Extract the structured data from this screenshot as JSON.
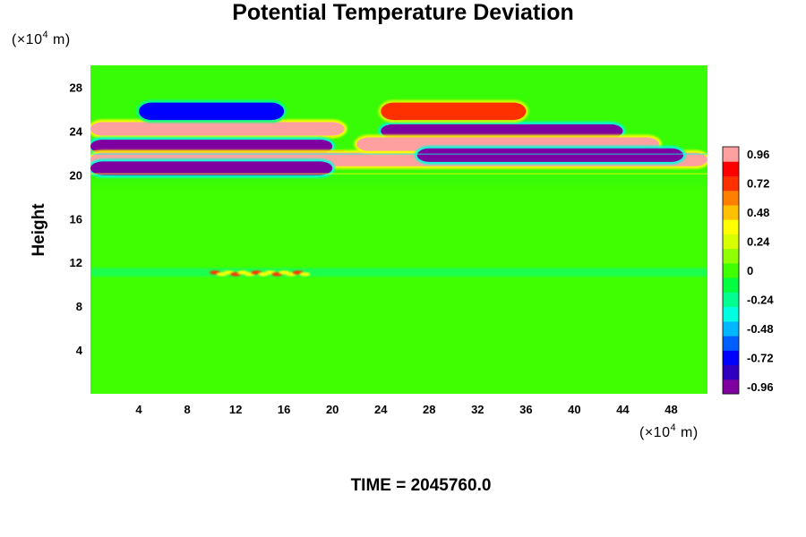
{
  "chart_data": {
    "type": "heatmap",
    "title": "Potential Temperature Deviation",
    "ylabel": "Height",
    "xlabel": "",
    "y_unit": {
      "prefix": "(×10",
      "exp": "4",
      "suffix": " m)"
    },
    "x_unit": {
      "prefix": "(×10",
      "exp": "4",
      "suffix": " m)"
    },
    "footer": "TIME = 2045760.0",
    "xlim": [
      0,
      51
    ],
    "ylim": [
      0,
      30
    ],
    "x_ticks": [
      "4",
      "8",
      "12",
      "16",
      "20",
      "24",
      "28",
      "32",
      "36",
      "40",
      "44",
      "48"
    ],
    "y_ticks": [
      "4",
      "8",
      "12",
      "16",
      "20",
      "24",
      "28"
    ],
    "colorbar": {
      "range": [
        -1.02,
        1.02
      ],
      "labels": [
        "0.96",
        "0.72",
        "0.48",
        "0.24",
        "0",
        "-0.24",
        "-0.48",
        "-0.72",
        "-0.96"
      ],
      "colors": [
        "#7f00a0",
        "#3000c0",
        "#0000ff",
        "#0060ff",
        "#00b8ff",
        "#00ffe0",
        "#00ff90",
        "#00ff40",
        "#40ff00",
        "#90ff00",
        "#d8ff00",
        "#ffff00",
        "#ffc000",
        "#ff8000",
        "#ff3000",
        "#ff0000",
        "#ffa0a0"
      ]
    },
    "field_features": [
      {
        "name": "positive layer",
        "y_center": 24.2,
        "x_range": [
          0,
          21
        ],
        "value": 1.0
      },
      {
        "name": "negative layer",
        "y_center": 22.6,
        "x_range": [
          0,
          20
        ],
        "value": -1.0
      },
      {
        "name": "positive layer",
        "y_center": 21.4,
        "x_range": [
          0,
          51
        ],
        "value": 1.0
      },
      {
        "name": "negative layer",
        "y_center": 20.6,
        "x_range": [
          0,
          20
        ],
        "value": -1.0
      },
      {
        "name": "negative layer",
        "y_center": 24.0,
        "x_range": [
          24,
          44
        ],
        "value": -1.0
      },
      {
        "name": "positive layer",
        "y_center": 22.8,
        "x_range": [
          22,
          47
        ],
        "value": 1.0
      },
      {
        "name": "negative layer",
        "y_center": 21.8,
        "x_range": [
          27,
          49
        ],
        "value": -1.0
      },
      {
        "name": "negative anomaly",
        "y_center": 25.8,
        "x_range": [
          4,
          16
        ],
        "value": -0.72
      },
      {
        "name": "positive anomaly",
        "y_center": 25.8,
        "x_range": [
          24,
          36
        ],
        "value": 0.72
      },
      {
        "name": "warm spots",
        "y_center": 11.0,
        "x_range": [
          10,
          18
        ],
        "value": 0.7
      }
    ]
  }
}
